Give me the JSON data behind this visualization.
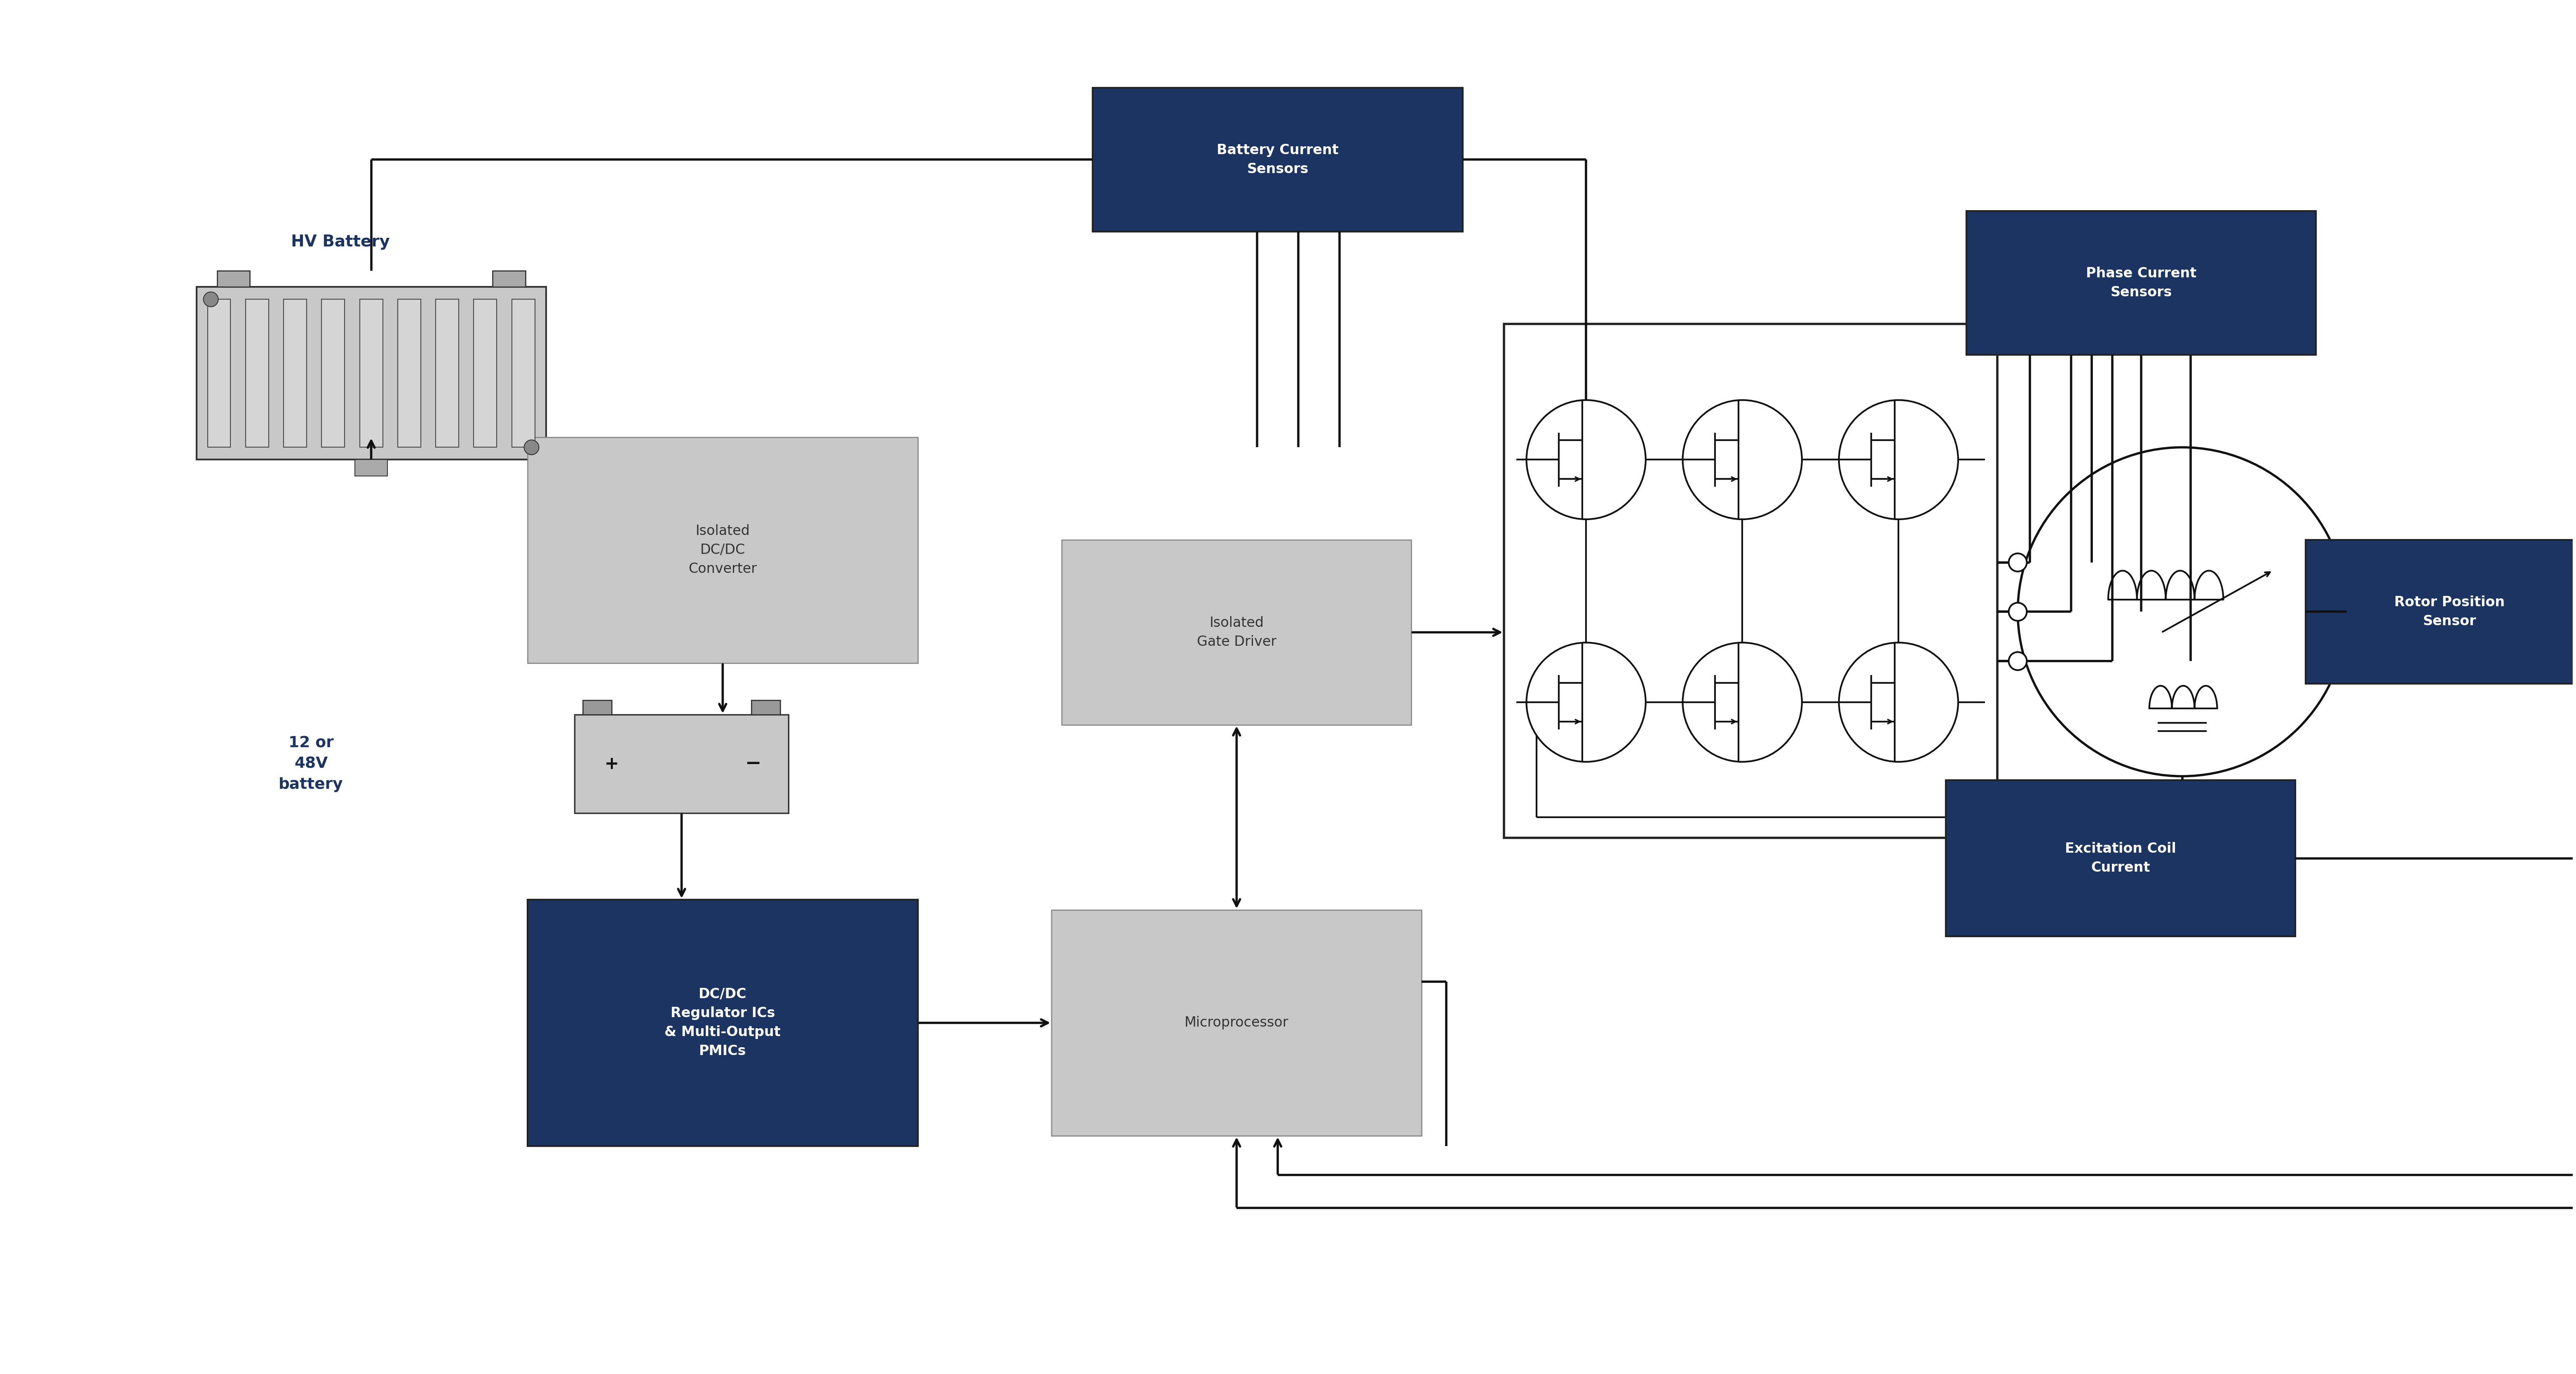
{
  "bg_color": "#ffffff",
  "dark_navy": "#1b3461",
  "light_gray": "#c8c8c8",
  "dark_text": "#222222",
  "white_text": "#ffffff",
  "blue_label": "#1b3461",
  "arrow_color": "#111111",
  "hv_battery_label": "HV Battery",
  "battery_current_label": "Battery Current\nSensors",
  "isolated_dcdc_label": "Isolated\nDC/DC\nConverter",
  "v12_48_label": "12 or\n48V\nbattery",
  "dcdc_reg_label": "DC/DC\nRegulator ICs\n& Multi-Output\nPMICs",
  "microprocessor_label": "Microprocessor",
  "isolated_gate_label": "Isolated\nGate Driver",
  "phase_current_label": "Phase Current\nSensors",
  "rotor_position_label": "Rotor Position\nSensor",
  "excitation_coil_label": "Excitation Coil\nCurrent",
  "figw": 62.5,
  "figh": 33.34
}
